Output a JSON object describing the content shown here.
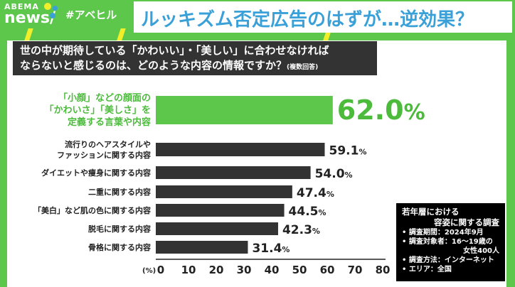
{
  "brand": {
    "logo_top": "ABEMA",
    "logo_bottom": "news/",
    "hashtag": "#アベヒル"
  },
  "headline": "ルッキズム否定広告のはずが…逆効果？",
  "question": {
    "line1": "世の中が期待している「かわいい」・「美しい」に合わせなければ",
    "line2": "ならないと感じるのは、どのような内容の情報ですか？",
    "note": "(複数回答)"
  },
  "chart_data": {
    "type": "bar",
    "orientation": "horizontal",
    "categories": [
      "「小顔」などの顔面の「かわいさ」「美しさ」を定義する言葉や内容",
      "流行りのヘアスタイルやファッションに関する内容",
      "ダイエットや痩身に関する内容",
      "二重に関する内容",
      "「美白」など肌の色に関する内容",
      "脱毛に関する内容",
      "骨格に関する内容"
    ],
    "category_lines": [
      [
        "「小顔」などの顔面の",
        "「かわいさ」「美しさ」を",
        "定義する言葉や内容"
      ],
      [
        "流行りのヘアスタイルや",
        "ファッションに関する内容"
      ],
      [
        "ダイエットや痩身に関する内容"
      ],
      [
        "二重に関する内容"
      ],
      [
        "「美白」など肌の色に関する内容"
      ],
      [
        "脱毛に関する内容"
      ],
      [
        "骨格に関する内容"
      ]
    ],
    "values": [
      62.0,
      59.1,
      54.0,
      47.4,
      44.5,
      42.3,
      31.4
    ],
    "labels": [
      "62.0",
      "59.1",
      "54.0",
      "47.4",
      "44.5",
      "42.3",
      "31.4"
    ],
    "unit": "%",
    "xlabel": "(%)",
    "xlim": [
      0,
      80
    ],
    "xticks": [
      0,
      10,
      20,
      30,
      40,
      50,
      60,
      70,
      80
    ],
    "colors": {
      "highlight": "#5dc74c",
      "default": "#333333"
    }
  },
  "survey_note": {
    "title1": "若年層における",
    "title2": "容姿に関する調査",
    "items": [
      "調査期間：2024年9月",
      "調査対象者：16〜19歳の",
      "女性400人",
      "調査方法：インターネット",
      "エリア：全国"
    ]
  }
}
